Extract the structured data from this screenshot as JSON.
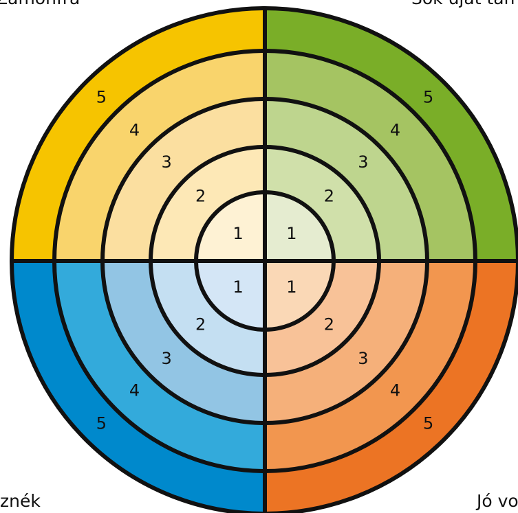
{
  "corner_labels": {
    "top_left": "Zamonfra",
    "top_right": "Sok újat tan",
    "bottom_left": "znék",
    "bottom_right": "Jó vo"
  },
  "quadrants": [
    {
      "rings": [
        1,
        2,
        3,
        4,
        5
      ]
    },
    {
      "rings": [
        1,
        2,
        3,
        4,
        5
      ]
    },
    {
      "rings": [
        1,
        2,
        3,
        4,
        5
      ]
    },
    {
      "rings": [
        1,
        2,
        3,
        4,
        5
      ]
    }
  ]
}
